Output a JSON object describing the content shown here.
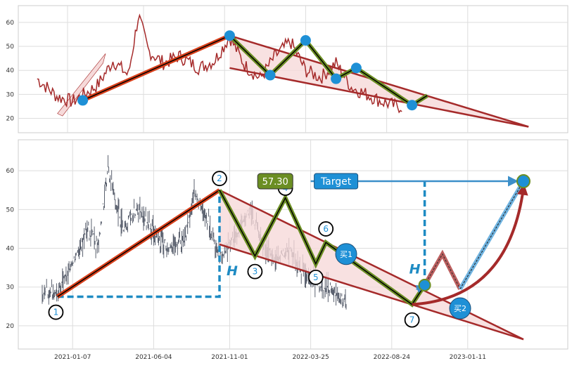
{
  "chart_data": [
    {
      "type": "line",
      "panel": "top",
      "ylim": [
        14,
        67
      ],
      "yticks": [
        20,
        30,
        40,
        50,
        60
      ],
      "grid": true,
      "legend": "none",
      "colors": {
        "price": "#a52a2a",
        "pattern_fill": "#f6dada",
        "pattern_edge": "#a52a2a",
        "zigzag_outer": "#6b8e23",
        "zigzag_inner": "#000000",
        "marker": "#1e90d6",
        "base_line": "#d9401b"
      },
      "price_anchors": [
        [
          -0.01,
          36.5
        ],
        [
          0.03,
          29
        ],
        [
          0.06,
          27
        ],
        [
          0.09,
          31
        ],
        [
          0.11,
          34
        ],
        [
          0.14,
          44
        ],
        [
          0.17,
          38
        ],
        [
          0.19,
          63
        ],
        [
          0.21,
          48
        ],
        [
          0.24,
          43
        ],
        [
          0.27,
          46
        ],
        [
          0.31,
          41
        ],
        [
          0.34,
          44
        ],
        [
          0.37,
          54
        ],
        [
          0.4,
          42
        ],
        [
          0.43,
          36.5
        ],
        [
          0.46,
          46
        ],
        [
          0.49,
          52
        ],
        [
          0.52,
          40
        ],
        [
          0.55,
          37
        ],
        [
          0.58,
          43
        ],
        [
          0.61,
          33
        ],
        [
          0.64,
          30
        ],
        [
          0.67,
          27
        ],
        [
          0.7,
          25
        ]
      ],
      "markers": [
        [
          0.08,
          27.5
        ],
        [
          0.37,
          54.5
        ],
        [
          0.45,
          38
        ],
        [
          0.52,
          52.5
        ],
        [
          0.58,
          36.5
        ],
        [
          0.62,
          41
        ],
        [
          0.73,
          25.5
        ]
      ],
      "triangle_upper": [
        [
          0.37,
          54.5
        ],
        [
          0.75,
          28
        ]
      ],
      "triangle_lower": [
        [
          0.37,
          41
        ],
        [
          0.96,
          16.5
        ]
      ]
    },
    {
      "type": "line",
      "panel": "bottom",
      "x_tick_labels": [
        "2021-01-07",
        "2021-06-04",
        "2021-11-01",
        "2022-03-25",
        "2022-08-24",
        "2023-01-11"
      ],
      "ylim": [
        14,
        68
      ],
      "yticks": [
        20,
        30,
        40,
        50,
        60
      ],
      "grid": true,
      "legend": "none",
      "colors": {
        "price": "#4a5160",
        "pattern_fill": "#f6dada",
        "pattern_edge": "#a52a2a",
        "zigzag_outer": "#6b8e23",
        "zigzag_inner": "#000000",
        "label_circle": "#000000",
        "label_text": "#1e90d6",
        "h_line": "#1e8bc3",
        "arrow_blue": "#3c8fc9",
        "buy_marker": "#1e90d6"
      },
      "price_anchors": [
        [
          0,
          29
        ],
        [
          0.03,
          28
        ],
        [
          0.06,
          36
        ],
        [
          0.09,
          45
        ],
        [
          0.11,
          41
        ],
        [
          0.13,
          60
        ],
        [
          0.16,
          45
        ],
        [
          0.19,
          50
        ],
        [
          0.22,
          44
        ],
        [
          0.25,
          40
        ],
        [
          0.28,
          42
        ],
        [
          0.3,
          54
        ],
        [
          0.33,
          46
        ],
        [
          0.35,
          38
        ],
        [
          0.38,
          43
        ],
        [
          0.41,
          50
        ],
        [
          0.44,
          40
        ],
        [
          0.46,
          37
        ],
        [
          0.49,
          40
        ],
        [
          0.52,
          33
        ],
        [
          0.55,
          31
        ],
        [
          0.58,
          28
        ],
        [
          0.6,
          26
        ]
      ],
      "points": [
        {
          "label": "1",
          "x": 0.03,
          "y": 27.5,
          "label_x": 0.027,
          "label_y": 23.5
        },
        {
          "label": "2",
          "x": 0.35,
          "y": 55,
          "label_x": 0.35,
          "label_y": 58
        },
        {
          "label": "3",
          "x": 0.42,
          "y": 38,
          "label_x": 0.42,
          "label_y": 34
        },
        {
          "label": "4",
          "x": 0.48,
          "y": 53,
          "label_x": 0.48,
          "label_y": 55.5
        },
        {
          "label": "5",
          "x": 0.54,
          "y": 36,
          "label_x": 0.54,
          "label_y": 32.5
        },
        {
          "label": "6",
          "x": 0.56,
          "y": 41.5,
          "label_x": 0.56,
          "label_y": 45
        },
        {
          "label": "7",
          "x": 0.73,
          "y": 25.5,
          "label_x": 0.73,
          "label_y": 21.5
        }
      ],
      "triangle_upper": [
        [
          0.35,
          55
        ],
        [
          0.76,
          29
        ]
      ],
      "triangle_lower": [
        [
          0.35,
          41
        ],
        [
          0.95,
          16.5
        ]
      ],
      "h_baseline_y": 27.5,
      "h_label": "H",
      "h_left_x": 0.35,
      "h_right_x": 0.755,
      "target_value_label": "57.30",
      "target_value_box_x": 0.46,
      "target_value_box_y": 57.3,
      "target_label": "Target",
      "target_box_x": 0.58,
      "target_box_y": 57.3,
      "target_point": [
        0.95,
        57.3
      ],
      "breakout_point": [
        0.755,
        30.5
      ],
      "buy1_label": "买1",
      "buy1_point": [
        0.6,
        38.5
      ],
      "buy2_label": "买2",
      "buy2_point": [
        0.825,
        24.5
      ],
      "pullback_path": [
        [
          0.755,
          30.5
        ],
        [
          0.79,
          38.5
        ],
        [
          0.825,
          29.5
        ]
      ],
      "curve_arrow": [
        [
          0.73,
          25.5
        ],
        [
          0.95,
          55.5
        ]
      ]
    }
  ]
}
